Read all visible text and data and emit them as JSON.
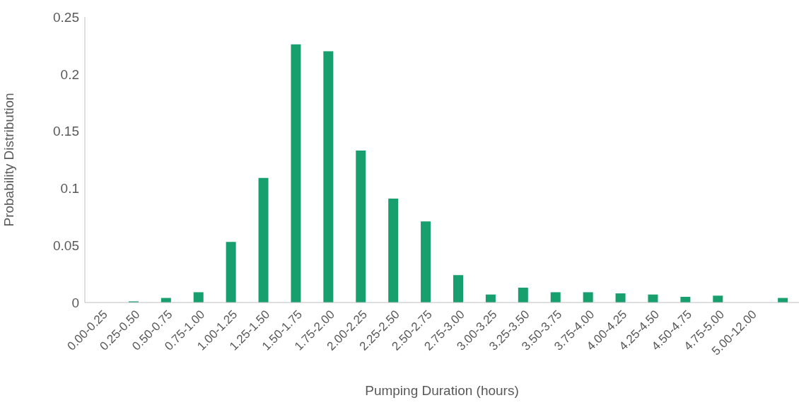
{
  "chart_data": {
    "type": "bar",
    "xlabel": "Pumping Duration (hours)",
    "ylabel": "Probability Distribution",
    "categories": [
      "0.00-0.25",
      "0.25-0.50",
      "0.50-0.75",
      "0.75-1.00",
      "1.00-1.25",
      "1.25-1.50",
      "1.50-1.75",
      "1.75-2.00",
      "2.00-2.25",
      "2.25-2.50",
      "2.50-2.75",
      "2.75-3.00",
      "3.00-3.25",
      "3.25-3.50",
      "3.50-3.75",
      "3.75-4.00",
      "4.00-4.25",
      "4.25-4.50",
      "4.50-4.75",
      "4.75-5.00",
      "5.00-12.00",
      null
    ],
    "values": [
      0,
      0.001,
      0.004,
      0.009,
      0.053,
      0.109,
      0.226,
      0.22,
      0.133,
      0.091,
      0.071,
      0.024,
      0.007,
      0.013,
      0.009,
      0.009,
      0.008,
      0.007,
      0.005,
      0.006,
      0,
      0.004
    ],
    "color": "#17a06e",
    "ylim": [
      0,
      0.25
    ],
    "yticks": [
      0,
      0.05,
      0.1,
      0.15,
      0.2,
      0.25
    ],
    "grid": false,
    "legend": false
  }
}
